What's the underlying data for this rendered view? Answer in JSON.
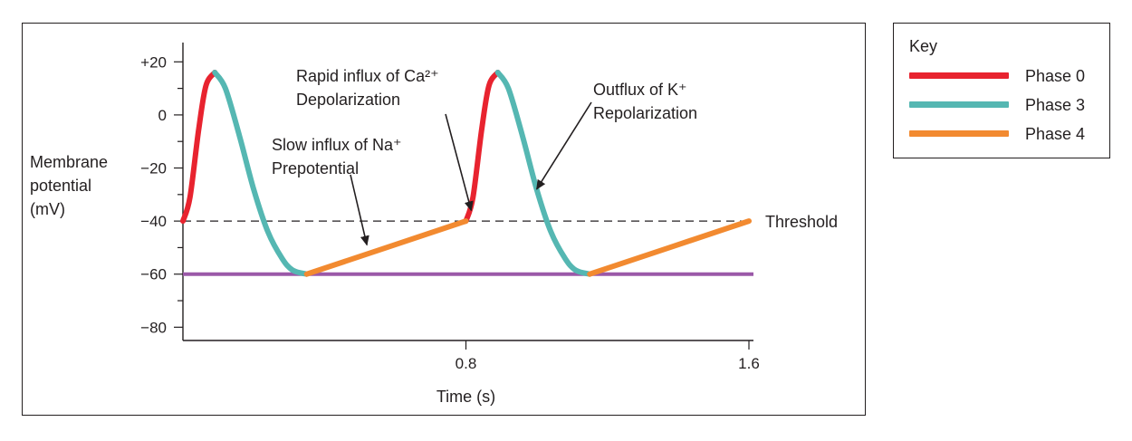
{
  "chart_data": {
    "type": "line",
    "title": "",
    "xlabel": "Time (s)",
    "ylabel_lines": [
      "Membrane",
      "potential",
      "(mV)"
    ],
    "xlim": [
      0,
      1.6
    ],
    "ylim": [
      -85,
      30
    ],
    "x_ticks": [
      0.8,
      1.6
    ],
    "x_tick_labels": [
      "0.8",
      "1.6"
    ],
    "y_ticks": [
      20,
      0,
      -20,
      -40,
      -60,
      -80
    ],
    "y_tick_labels": [
      "+20",
      "0",
      "−20",
      "−40",
      "−60",
      "−80"
    ],
    "grid": false,
    "threshold": {
      "value": -40,
      "label": "Threshold"
    },
    "resting_line": {
      "value": -60,
      "color": "#9b59a8"
    },
    "series": [
      {
        "name": "Phase 0",
        "color": "#e8232f",
        "segments": [
          [
            [
              0.0,
              -40
            ],
            [
              0.02,
              -31
            ],
            [
              0.045,
              -5
            ],
            [
              0.065,
              11
            ],
            [
              0.09,
              16
            ]
          ],
          [
            [
              0.8,
              -40
            ],
            [
              0.82,
              -31
            ],
            [
              0.845,
              -5
            ],
            [
              0.865,
              11
            ],
            [
              0.89,
              16
            ]
          ]
        ]
      },
      {
        "name": "Phase 3",
        "color": "#55b7b2",
        "segments": [
          [
            [
              0.09,
              16
            ],
            [
              0.12,
              10
            ],
            [
              0.16,
              -8
            ],
            [
              0.2,
              -28
            ],
            [
              0.24,
              -44
            ],
            [
              0.28,
              -54
            ],
            [
              0.31,
              -58.5
            ],
            [
              0.35,
              -60
            ]
          ],
          [
            [
              0.89,
              16
            ],
            [
              0.92,
              10
            ],
            [
              0.96,
              -8
            ],
            [
              1.0,
              -28
            ],
            [
              1.04,
              -44
            ],
            [
              1.08,
              -54
            ],
            [
              1.11,
              -58.5
            ],
            [
              1.15,
              -60
            ]
          ]
        ]
      },
      {
        "name": "Phase 4",
        "color": "#f28a30",
        "segments": [
          [
            [
              0.35,
              -60
            ],
            [
              0.8,
              -40
            ]
          ],
          [
            [
              1.15,
              -60
            ],
            [
              1.6,
              -40
            ]
          ]
        ]
      }
    ],
    "annotations": [
      {
        "lines": [
          "Rapid influx of Ca²⁺",
          "Depolarization"
        ],
        "arrow_to": [
          0.815,
          -36
        ]
      },
      {
        "lines": [
          "Outflux of K⁺",
          "Repolarization"
        ],
        "arrow_to": [
          1.0,
          -28
        ]
      },
      {
        "lines": [
          "Slow influx of Na⁺",
          "Prepotential"
        ],
        "arrow_to": [
          0.52,
          -49
        ]
      }
    ]
  },
  "legend": {
    "title": "Key",
    "items": [
      {
        "label": "Phase 0",
        "color": "#e8232f"
      },
      {
        "label": "Phase 3",
        "color": "#55b7b2"
      },
      {
        "label": "Phase 4",
        "color": "#f28a30"
      }
    ]
  }
}
